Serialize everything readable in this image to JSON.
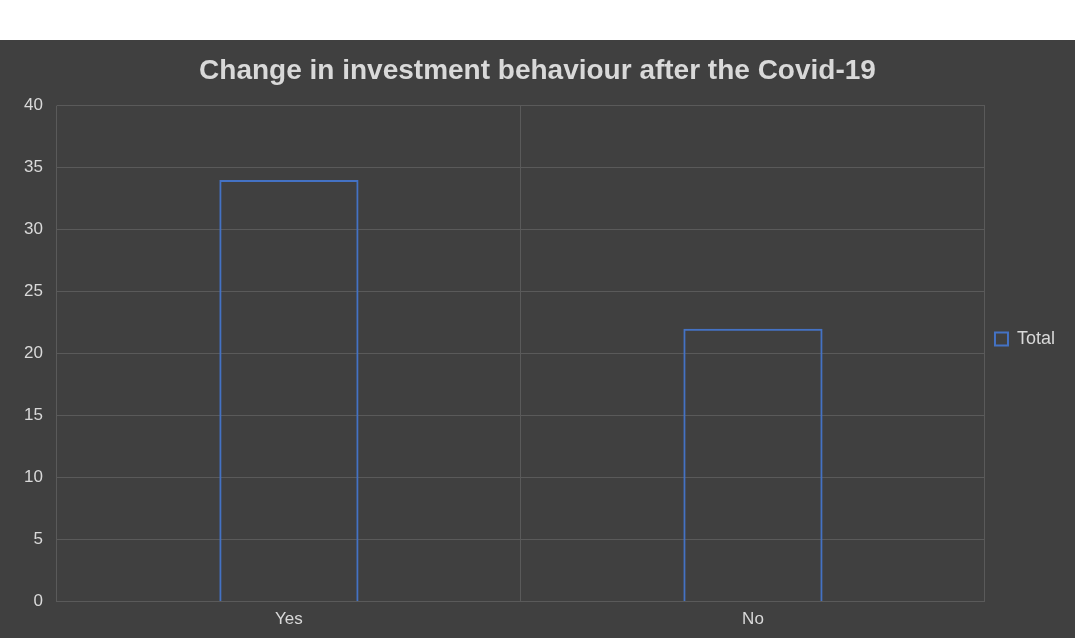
{
  "chart_data": {
    "type": "bar",
    "title": "Change in investment behaviour after the Covid-19",
    "categories": [
      "Yes",
      "No"
    ],
    "series": [
      {
        "name": "Total",
        "color": "#4472c4",
        "values": [
          34,
          22
        ]
      }
    ],
    "ylim": [
      0,
      40
    ],
    "yticks": [
      0,
      5,
      10,
      15,
      20,
      25,
      30,
      35,
      40
    ],
    "grid": true,
    "legend": "right"
  }
}
